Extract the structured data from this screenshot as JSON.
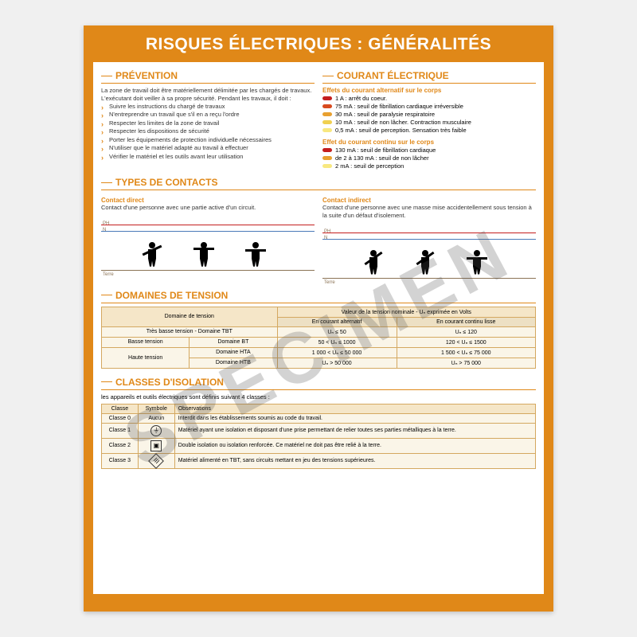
{
  "title": "RISQUES ÉLECTRIQUES : GÉNÉRALITÉS",
  "watermark": "SPECIMEN",
  "colors": {
    "accent": "#e08818",
    "border": "#d4a860",
    "th_bg": "#f5e6c8",
    "td_bg": "#faf5e8"
  },
  "prevention": {
    "head": "PRÉVENTION",
    "intro1": "La zone de travail doit être matériellement délimitée par les chargés de travaux.",
    "intro2": "L'exécutant doit veiller à sa propre sécurité. Pendant les travaux, il doit :",
    "items": [
      "Suivre les instructions du chargé de travaux",
      "N'entreprendre un travail que s'il en a reçu l'ordre",
      "Respecter les limites de la zone de travail",
      "Respecter les dispositions de sécurité",
      "Porter les équipements de protection individuelle nécessaires",
      "N'utiliser que le matériel adapté au travail à effectuer",
      "Vérifier le matériel et les outils avant leur utilisation"
    ]
  },
  "current": {
    "head": "COURANT ÉLECTRIQUE",
    "alt_head": "Effets du courant alternatif sur le corps",
    "alt": [
      {
        "c": "#c41e1e",
        "t": "1 A : arrêt du coeur."
      },
      {
        "c": "#d84a1e",
        "t": "75 mA : seuil de fibrillation cardiaque irréversible"
      },
      {
        "c": "#e8a030",
        "t": "30 mA : seuil de paralysie respiratoire"
      },
      {
        "c": "#f0d050",
        "t": "10 mA : seuil de non lâcher. Contraction musculaire"
      },
      {
        "c": "#f8e880",
        "t": "0,5 mA : seuil de perception. Sensation très faible"
      }
    ],
    "dc_head": "Effet du courant continu sur le corps",
    "dc": [
      {
        "c": "#c41e1e",
        "t": "130 mA : seuil de fibrillation cardiaque"
      },
      {
        "c": "#e8a030",
        "t": "de 2 à 130 mA : seuil de non lâcher"
      },
      {
        "c": "#f8e880",
        "t": "2 mA : seuil de perception"
      }
    ]
  },
  "contacts": {
    "head": "TYPES DE CONTACTS",
    "direct_head": "Contact direct",
    "direct_text": "Contact d'une personne avec une partie active d'un circuit.",
    "indirect_head": "Contact indirect",
    "indirect_text": "Contact d'une personne avec une masse mise accidentellement sous tension à la suite d'un défaut d'isolement.",
    "ph": "PH",
    "n": "N",
    "terre": "Terre",
    "wire_colors": {
      "ph": "#c41e1e",
      "n": "#4a7ab8"
    }
  },
  "tension": {
    "head": "DOMAINES DE TENSION",
    "cols": [
      "Domaine de tension",
      "Valeur de la tension nominale - Uₙ exprimée en Volts"
    ],
    "subcols": [
      "En courant alternatif",
      "En courant continu lisse"
    ],
    "rows": [
      [
        "Très basse tension - Domaine TBT",
        "Uₙ ≤ 50",
        "Uₙ ≤ 120"
      ],
      [
        "Basse tension | Domaine BT",
        "50 < Uₙ ≤ 1000",
        "120 < Uₙ ≤ 1500"
      ],
      [
        "Haute tension | Domaine HTA",
        "1 000 < Uₙ ≤ 50 000",
        "1 500 < Uₙ ≤ 75 000"
      ],
      [
        "Haute tension | Domaine HTB",
        "Uₙ > 50 000",
        "Uₙ > 75 000"
      ]
    ],
    "group_basse": "Basse tension",
    "group_haute": "Haute tension",
    "d_bt": "Domaine BT",
    "d_hta": "Domaine HTA",
    "d_htb": "Domaine HTB"
  },
  "isolation": {
    "head": "CLASSES D'ISOLATION",
    "intro": "les appareils et outils électriques sont définis suivant 4 classes :",
    "cols": [
      "Classe",
      "Symbole",
      "Observations"
    ],
    "rows": [
      [
        "Classe 0",
        "Aucun",
        "Interdit dans les établissements soumis au code du travail."
      ],
      [
        "Classe 1",
        "⏚",
        "Matériel ayant une isolation et disposant d'une prise permettant de relier toutes ses parties métalliques à la terre."
      ],
      [
        "Classe 2",
        "▣",
        "Double isolation ou isolation renforcée. Ce matériel ne doit pas être relié à la terre."
      ],
      [
        "Classe 3",
        "III",
        "Matériel alimenté en TBT, sans circuits mettant en jeu des tensions supérieures."
      ]
    ]
  }
}
